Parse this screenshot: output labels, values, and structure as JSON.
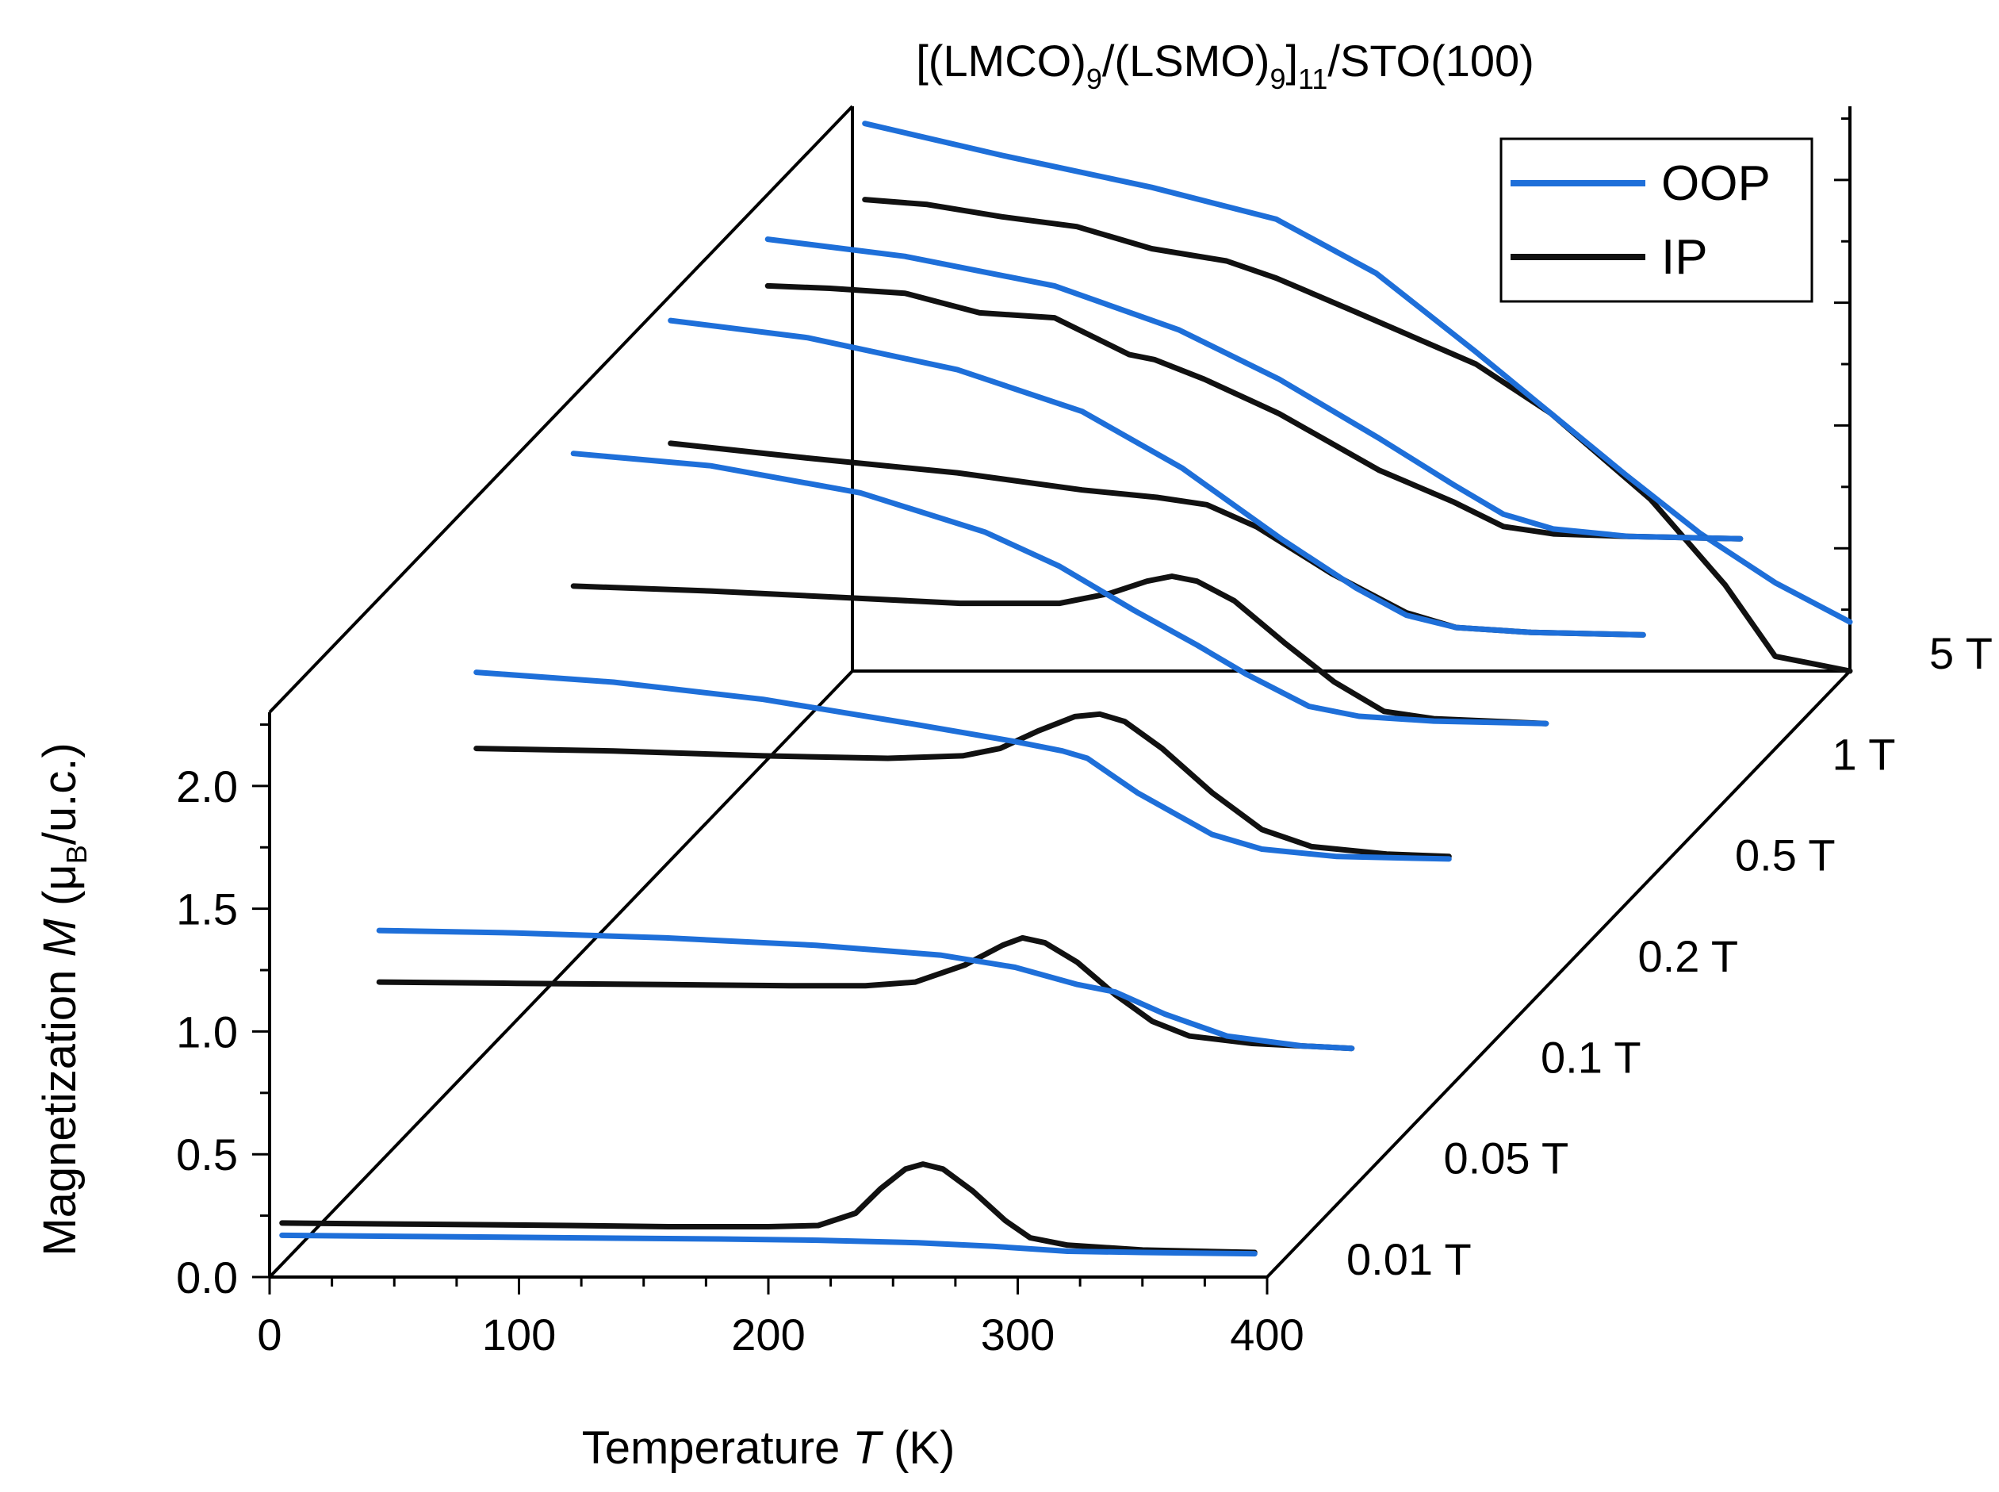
{
  "chart_data": {
    "type": "line",
    "style": "3d-waterfall",
    "title_parts": {
      "open": "[(LMCO)",
      "sub1": "9",
      "slash": "/(LSMO)",
      "sub2": "9",
      "close": "]",
      "sub3": "11",
      "tail": "/STO(100)"
    },
    "xlabel_parts": {
      "pre": "Temperature ",
      "var": "T",
      "post": " (K)"
    },
    "ylabel_parts": {
      "pre": "Magnetization ",
      "var": "M",
      "open": " (μ",
      "sub": "B",
      "post": "/u.c.)"
    },
    "xlim": [
      0,
      400
    ],
    "ylim": [
      0,
      2.3
    ],
    "x_ticks": [
      "0",
      "100",
      "200",
      "300",
      "400"
    ],
    "y_ticks": [
      "0.0",
      "0.5",
      "1.0",
      "1.5",
      "2.0"
    ],
    "legend": [
      {
        "name": "OOP",
        "color": "#1e6fd9"
      },
      {
        "name": "IP",
        "color": "#111111"
      }
    ],
    "fields": [
      {
        "label": "0.01 T",
        "OOP": [
          [
            5,
            0.17
          ],
          [
            60,
            0.165
          ],
          [
            120,
            0.16
          ],
          [
            180,
            0.155
          ],
          [
            220,
            0.15
          ],
          [
            260,
            0.14
          ],
          [
            290,
            0.125
          ],
          [
            320,
            0.105
          ],
          [
            350,
            0.1
          ],
          [
            395,
            0.095
          ]
        ],
        "IP": [
          [
            5,
            0.22
          ],
          [
            60,
            0.215
          ],
          [
            120,
            0.21
          ],
          [
            160,
            0.205
          ],
          [
            200,
            0.205
          ],
          [
            220,
            0.21
          ],
          [
            235,
            0.26
          ],
          [
            245,
            0.36
          ],
          [
            255,
            0.44
          ],
          [
            262,
            0.46
          ],
          [
            270,
            0.44
          ],
          [
            282,
            0.35
          ],
          [
            295,
            0.23
          ],
          [
            305,
            0.16
          ],
          [
            320,
            0.13
          ],
          [
            350,
            0.11
          ],
          [
            395,
            0.1
          ]
        ]
      },
      {
        "label": "0.05 T",
        "OOP": [
          [
            5,
            1.0
          ],
          [
            60,
            0.99
          ],
          [
            120,
            0.97
          ],
          [
            180,
            0.94
          ],
          [
            230,
            0.9
          ],
          [
            260,
            0.85
          ],
          [
            285,
            0.78
          ],
          [
            300,
            0.75
          ],
          [
            320,
            0.66
          ],
          [
            345,
            0.57
          ],
          [
            375,
            0.53
          ],
          [
            395,
            0.52
          ]
        ],
        "IP": [
          [
            5,
            0.79
          ],
          [
            60,
            0.785
          ],
          [
            120,
            0.78
          ],
          [
            170,
            0.775
          ],
          [
            200,
            0.775
          ],
          [
            220,
            0.79
          ],
          [
            240,
            0.86
          ],
          [
            255,
            0.94
          ],
          [
            263,
            0.97
          ],
          [
            272,
            0.95
          ],
          [
            285,
            0.87
          ],
          [
            300,
            0.74
          ],
          [
            315,
            0.63
          ],
          [
            330,
            0.57
          ],
          [
            355,
            0.54
          ],
          [
            395,
            0.52
          ]
        ]
      },
      {
        "label": "0.1 T",
        "OOP": [
          [
            5,
            1.64
          ],
          [
            60,
            1.6
          ],
          [
            120,
            1.53
          ],
          [
            180,
            1.43
          ],
          [
            220,
            1.36
          ],
          [
            240,
            1.32
          ],
          [
            250,
            1.29
          ],
          [
            270,
            1.15
          ],
          [
            300,
            0.98
          ],
          [
            320,
            0.92
          ],
          [
            350,
            0.89
          ],
          [
            395,
            0.88
          ]
        ],
        "IP": [
          [
            5,
            1.33
          ],
          [
            60,
            1.32
          ],
          [
            120,
            1.3
          ],
          [
            170,
            1.29
          ],
          [
            200,
            1.3
          ],
          [
            215,
            1.33
          ],
          [
            230,
            1.4
          ],
          [
            245,
            1.46
          ],
          [
            255,
            1.47
          ],
          [
            265,
            1.44
          ],
          [
            280,
            1.33
          ],
          [
            300,
            1.15
          ],
          [
            320,
            1.0
          ],
          [
            340,
            0.93
          ],
          [
            370,
            0.9
          ],
          [
            395,
            0.89
          ]
        ]
      },
      {
        "label": "0.2 T",
        "OOP": [
          [
            5,
            2.12
          ],
          [
            60,
            2.07
          ],
          [
            120,
            1.96
          ],
          [
            170,
            1.8
          ],
          [
            200,
            1.66
          ],
          [
            230,
            1.48
          ],
          [
            255,
            1.34
          ],
          [
            275,
            1.22
          ],
          [
            300,
            1.09
          ],
          [
            320,
            1.05
          ],
          [
            350,
            1.03
          ],
          [
            395,
            1.02
          ]
        ],
        "IP": [
          [
            5,
            1.58
          ],
          [
            60,
            1.56
          ],
          [
            120,
            1.53
          ],
          [
            160,
            1.51
          ],
          [
            200,
            1.51
          ],
          [
            220,
            1.55
          ],
          [
            235,
            1.6
          ],
          [
            245,
            1.62
          ],
          [
            255,
            1.6
          ],
          [
            270,
            1.52
          ],
          [
            290,
            1.35
          ],
          [
            310,
            1.19
          ],
          [
            330,
            1.07
          ],
          [
            350,
            1.04
          ],
          [
            395,
            1.02
          ]
        ]
      },
      {
        "label": "0.5 T",
        "OOP": [
          [
            5,
            2.25
          ],
          [
            60,
            2.18
          ],
          [
            120,
            2.05
          ],
          [
            170,
            1.88
          ],
          [
            210,
            1.65
          ],
          [
            250,
            1.36
          ],
          [
            280,
            1.16
          ],
          [
            300,
            1.05
          ],
          [
            320,
            1.0
          ],
          [
            350,
            0.98
          ],
          [
            395,
            0.97
          ]
        ],
        "IP": [
          [
            5,
            1.75
          ],
          [
            60,
            1.69
          ],
          [
            120,
            1.63
          ],
          [
            170,
            1.56
          ],
          [
            200,
            1.53
          ],
          [
            220,
            1.5
          ],
          [
            240,
            1.41
          ],
          [
            270,
            1.22
          ],
          [
            300,
            1.06
          ],
          [
            320,
            1.0
          ],
          [
            350,
            0.98
          ],
          [
            395,
            0.97
          ]
        ]
      },
      {
        "label": "1 T",
        "OOP": [
          [
            5,
            2.17
          ],
          [
            60,
            2.1
          ],
          [
            120,
            1.98
          ],
          [
            170,
            1.8
          ],
          [
            210,
            1.6
          ],
          [
            250,
            1.36
          ],
          [
            280,
            1.17
          ],
          [
            300,
            1.05
          ],
          [
            320,
            0.99
          ],
          [
            350,
            0.96
          ],
          [
            395,
            0.95
          ]
        ],
        "IP": [
          [
            5,
            1.98
          ],
          [
            30,
            1.97
          ],
          [
            60,
            1.95
          ],
          [
            90,
            1.87
          ],
          [
            120,
            1.85
          ],
          [
            150,
            1.7
          ],
          [
            160,
            1.68
          ],
          [
            180,
            1.6
          ],
          [
            210,
            1.46
          ],
          [
            250,
            1.23
          ],
          [
            280,
            1.1
          ],
          [
            300,
            1.0
          ],
          [
            320,
            0.97
          ],
          [
            350,
            0.96
          ],
          [
            395,
            0.95
          ]
        ]
      },
      {
        "label": "5 T",
        "OOP": [
          [
            5,
            2.23
          ],
          [
            60,
            2.1
          ],
          [
            120,
            1.97
          ],
          [
            170,
            1.84
          ],
          [
            210,
            1.62
          ],
          [
            250,
            1.3
          ],
          [
            280,
            1.05
          ],
          [
            310,
            0.8
          ],
          [
            340,
            0.56
          ],
          [
            370,
            0.36
          ],
          [
            400,
            0.2
          ]
        ],
        "IP": [
          [
            5,
            1.92
          ],
          [
            30,
            1.9
          ],
          [
            60,
            1.85
          ],
          [
            90,
            1.81
          ],
          [
            120,
            1.72
          ],
          [
            150,
            1.67
          ],
          [
            170,
            1.6
          ],
          [
            200,
            1.47
          ],
          [
            250,
            1.25
          ],
          [
            280,
            1.05
          ],
          [
            320,
            0.7
          ],
          [
            350,
            0.35
          ],
          [
            370,
            0.06
          ],
          [
            385,
            0.03
          ],
          [
            400,
            0.0
          ]
        ]
      }
    ]
  }
}
